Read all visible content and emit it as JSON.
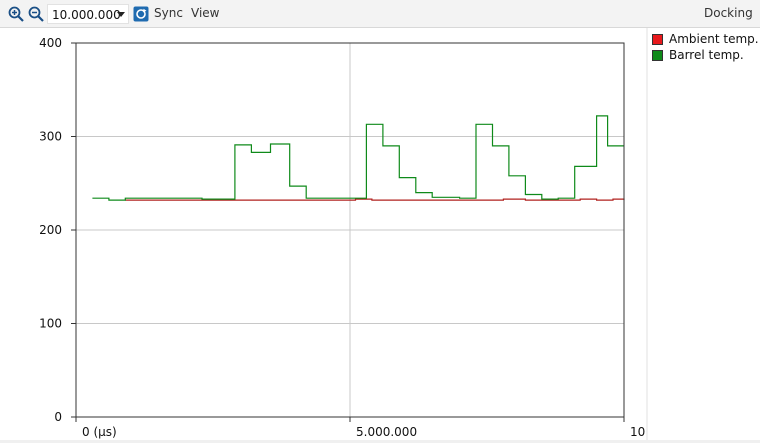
{
  "toolbar": {
    "zoom_value": "10.000.000",
    "sync_label": "Sync",
    "view_label": "View",
    "docking_label": "Docking",
    "icons": [
      "zoom-in-icon",
      "zoom-out-icon",
      "dropdown-arrow-icon",
      "sync-icon"
    ]
  },
  "legend": {
    "items": [
      {
        "label": "Ambient temp.",
        "color": "#e8191c"
      },
      {
        "label": "Barrel temp.",
        "color": "#0f8a1a"
      }
    ]
  },
  "chart_data": {
    "type": "line",
    "step": true,
    "x_tick_labels": [
      "0 (µs)",
      "5.000.000",
      "10"
    ],
    "y_tick_labels": [
      "0",
      "100",
      "200",
      "300",
      "400"
    ],
    "xlim": [
      0,
      10000000
    ],
    "ylim": [
      0,
      400
    ],
    "grid": true,
    "legend_position": "right",
    "series": [
      {
        "name": "Ambient temp.",
        "color": "#b0201e",
        "x": [
          900000,
          5100000,
          5400000,
          7800000,
          8200000,
          9200000,
          9500000,
          9800000,
          10000000
        ],
        "y": [
          232,
          233,
          232,
          233,
          232,
          233,
          232,
          233,
          232
        ]
      },
      {
        "name": "Barrel temp.",
        "color": "#0f8a1a",
        "x": [
          300000,
          600000,
          900000,
          1300000,
          2000000,
          2300000,
          2900000,
          3200000,
          3550000,
          3900000,
          4200000,
          5000000,
          5300000,
          5600000,
          5900000,
          6200000,
          6500000,
          7000000,
          7300000,
          7600000,
          7900000,
          8200000,
          8500000,
          8800000,
          9100000,
          9500000,
          9700000,
          10000000
        ],
        "y": [
          234,
          232,
          234,
          234,
          234,
          233,
          291,
          283,
          292,
          247,
          234,
          234,
          313,
          290,
          256,
          240,
          235,
          234,
          313,
          290,
          258,
          238,
          233,
          234,
          268,
          322,
          290,
          290
        ]
      }
    ]
  }
}
